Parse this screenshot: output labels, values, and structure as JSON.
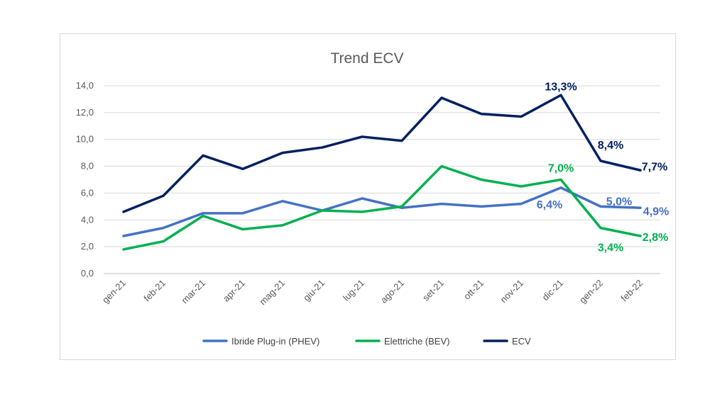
{
  "chart_data": {
    "type": "line",
    "title": "Trend ECV",
    "categories": [
      "gen-21",
      "feb-21",
      "mar-21",
      "apr-21",
      "mag-21",
      "giu-21",
      "lug-21",
      "ago-21",
      "set-21",
      "ott-21",
      "nov-21",
      "dic-21",
      "gen-22",
      "feb-22"
    ],
    "ylim": [
      0,
      14
    ],
    "yticks": [
      "0,0",
      "2,0",
      "4,0",
      "6,0",
      "8,0",
      "10,0",
      "12,0",
      "14,0"
    ],
    "grid": true,
    "legend_position": "bottom",
    "series": [
      {
        "name": "Ibride Plug-in (PHEV)",
        "color": "#4472C4",
        "values": [
          2.8,
          3.4,
          4.5,
          4.5,
          5.4,
          4.7,
          5.6,
          4.9,
          5.2,
          5.0,
          5.2,
          6.4,
          5.0,
          4.9
        ]
      },
      {
        "name": "Elettriche (BEV)",
        "color": "#00B050",
        "values": [
          1.8,
          2.4,
          4.3,
          3.3,
          3.6,
          4.7,
          4.6,
          5.0,
          8.0,
          7.0,
          6.5,
          7.0,
          3.4,
          2.8
        ]
      },
      {
        "name": "ECV",
        "color": "#002060",
        "values": [
          4.6,
          5.8,
          8.8,
          7.8,
          9.0,
          9.4,
          10.2,
          9.9,
          13.1,
          11.9,
          11.7,
          13.3,
          8.4,
          7.7
        ]
      }
    ],
    "data_labels": [
      {
        "series": 2,
        "index": 11,
        "text": "13,3%"
      },
      {
        "series": 2,
        "index": 12,
        "text": "8,4%"
      },
      {
        "series": 2,
        "index": 13,
        "text": "7,7%"
      },
      {
        "series": 1,
        "index": 11,
        "text": "7,0%"
      },
      {
        "series": 0,
        "index": 11,
        "text": "6,4%"
      },
      {
        "series": 0,
        "index": 12,
        "text": "5,0%"
      },
      {
        "series": 0,
        "index": 13,
        "text": "4,9%"
      },
      {
        "series": 1,
        "index": 12,
        "text": "3,4%"
      },
      {
        "series": 1,
        "index": 13,
        "text": "2,8%"
      }
    ]
  }
}
